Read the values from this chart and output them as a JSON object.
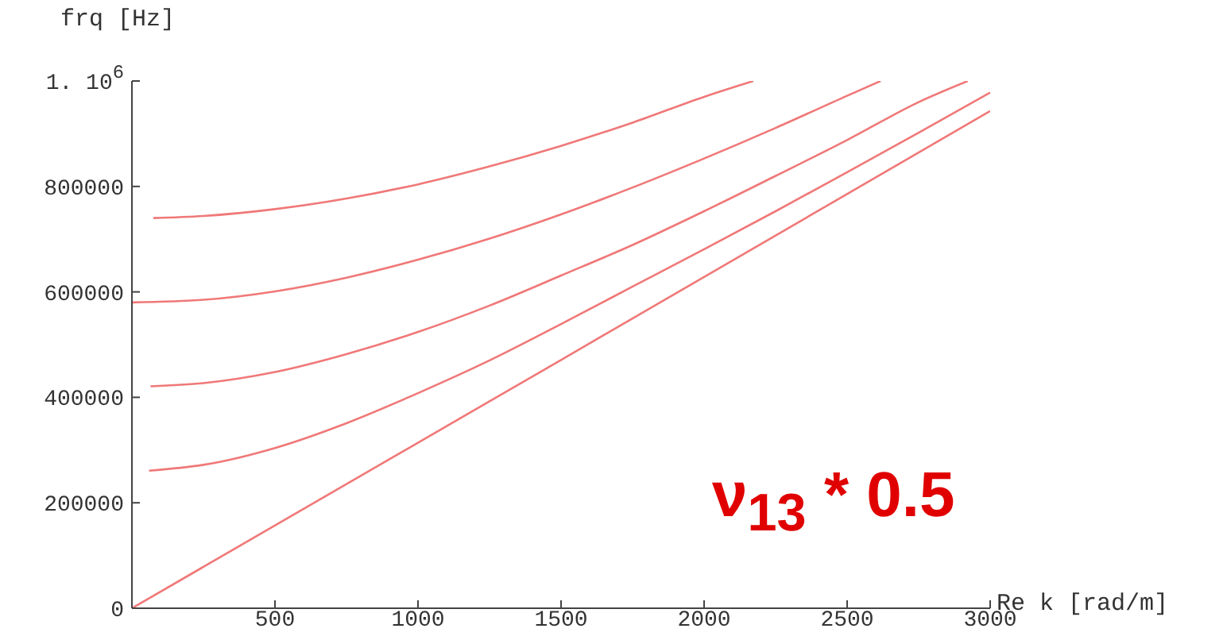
{
  "chart_data": {
    "type": "line",
    "xlabel": "Re k [rad/m]",
    "ylabel": "frq [Hz]",
    "xlim": [
      0,
      3000
    ],
    "xticks": [
      500,
      1000,
      1500,
      2000,
      2500,
      3000
    ],
    "ylim": [
      0,
      1000000
    ],
    "yticks": [
      0,
      200000,
      400000,
      600000,
      800000,
      {
        "value": 1000000,
        "label": "1. 10$^{6}$"
      }
    ],
    "marker": "none",
    "line_style": "solid",
    "series": [
      {
        "color": "#f07878",
        "x": [
          75,
          250,
          500,
          750,
          1000,
          1250,
          1500,
          1750,
          2000,
          2172
        ],
        "values": [
          740000,
          744000,
          757000,
          777000,
          804000,
          838000,
          877000,
          921000,
          970000,
          1000000
        ]
      },
      {
        "color": "#f07878",
        "x": [
          0,
          250,
          500,
          750,
          1000,
          1250,
          1500,
          1750,
          2000,
          2250,
          2500,
          2617
        ],
        "values": [
          580000,
          585000,
          601000,
          627000,
          661000,
          701000,
          747000,
          798000,
          853000,
          911000,
          972000,
          1000000
        ]
      },
      {
        "color": "#f07878",
        "x": [
          65,
          250,
          500,
          750,
          1000,
          1250,
          1500,
          1750,
          2000,
          2250,
          2500,
          2750,
          2922
        ],
        "values": [
          421000,
          427000,
          448000,
          482000,
          524000,
          574000,
          631000,
          689000,
          753000,
          820000,
          888000,
          960000,
          1000000
        ]
      },
      {
        "color": "#f07878",
        "x": [
          60,
          250,
          500,
          750,
          1000,
          1250,
          1500,
          1750,
          2000,
          2250,
          2500,
          2750,
          3000
        ],
        "values": [
          261000,
          272000,
          304000,
          351000,
          408000,
          470000,
          539000,
          610000,
          681000,
          753000,
          827000,
          902000,
          978000
        ]
      },
      {
        "color": "#f07878",
        "x": [
          0,
          1500,
          3000
        ],
        "values": [
          0,
          471000,
          943000
        ]
      }
    ],
    "annotations": [
      "ν$_{13}$ * 0.5"
    ]
  }
}
